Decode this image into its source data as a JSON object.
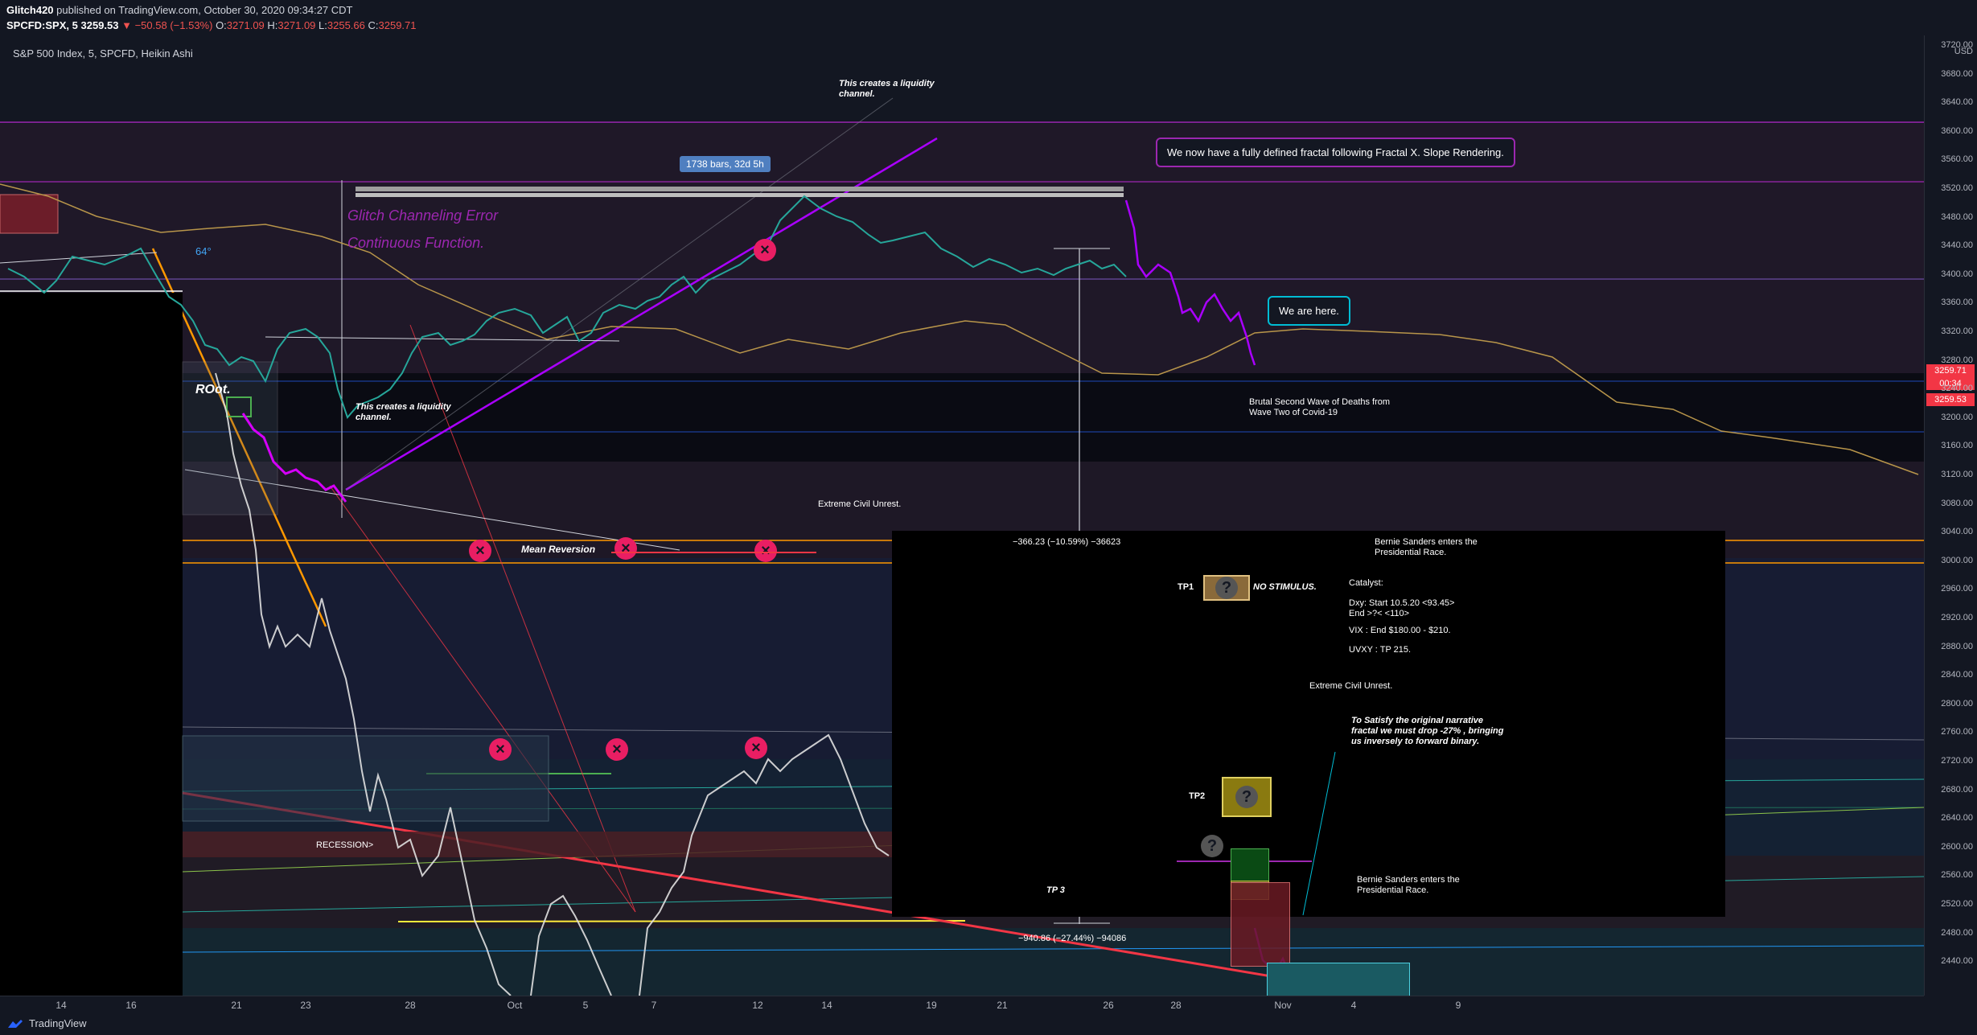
{
  "header": {
    "author": "Glitch420",
    "published": "published on TradingView.com, October 30, 2020 09:34:27 CDT",
    "symbol": "SPCFD:SPX, 5",
    "last": "3259.53",
    "change": "▼ −50.58 (−1.53%)",
    "o_label": "O:",
    "o": "3271.09",
    "h_label": "H:",
    "h": "3271.09",
    "l_label": "L:",
    "l": "3255.66",
    "c_label": "C:",
    "c": "3259.71"
  },
  "legend": "S&P 500 Index, 5, SPCFD, Heikin Ashi",
  "yaxis": {
    "unit": "USD",
    "ticks": [
      "3720.00",
      "3680.00",
      "3640.00",
      "3600.00",
      "3560.00",
      "3520.00",
      "3480.00",
      "3440.00",
      "3400.00",
      "3360.00",
      "3320.00",
      "3280.00",
      "3240.00",
      "3200.00",
      "3160.00",
      "3120.00",
      "3080.00",
      "3040.00",
      "3000.00",
      "2960.00",
      "2920.00",
      "2880.00",
      "2840.00",
      "2800.00",
      "2760.00",
      "2720.00",
      "2680.00",
      "2640.00",
      "2600.00",
      "2560.00",
      "2520.00",
      "2480.00",
      "2440.00"
    ],
    "tag1": "3259.71",
    "tag2": "00:34",
    "tag3": "3259.53"
  },
  "xaxis": {
    "ticks": [
      "14",
      "16",
      "21",
      "23",
      "28",
      "Oct",
      "5",
      "7",
      "12",
      "14",
      "19",
      "21",
      "26",
      "28",
      "Nov",
      "4",
      "9"
    ]
  },
  "annotations": {
    "liquidity_top": "This creates a liquidity channel.",
    "bars_label": "1738 bars, 32d 5h",
    "fractal_bubble": "We now have a fully defined fractal following Fractal X. Slope Rendering.",
    "glitch_error": "Glitch Channeling Error",
    "continuous": "Continuous Function.",
    "angle": "64°",
    "root": "ROot.",
    "liquidity_left": "This creates a liquidity channel.",
    "we_are_here": "We are here.",
    "brutal_wave": "Brutal Second Wave of Deaths from Wave Two of Covid-19",
    "extreme_civil_1": "Extreme Civil Unrest.",
    "measure_top": "−366.23 (−10.59%) −36623",
    "bernie_1": "Bernie Sanders enters the Presidential Race.",
    "tp1": "TP1",
    "no_stimulus": "NO STIMULUS.",
    "catalyst": "Catalyst:",
    "dxy": "Dxy: Start 10.5.20 <93.45>",
    "dxy_end": "End >?< <110>",
    "vix": "VIX : End $180.00 - $210.",
    "uvxy": "UVXY : TP 215.",
    "extreme_civil_2": "Extreme Civil Unrest.",
    "satisfy": "To Satisfy the original narrative fractal we must drop -27% , bringing us inversely to forward binary.",
    "tp2": "TP2",
    "mean_reversion": "Mean Reversion",
    "recession": "RECESSION>",
    "tp3": "TP 3",
    "bernie_2": "Bernie Sanders enters the Presidential Race.",
    "measure_bottom": "−940.86 (−27.44%) −94086",
    "question": "?"
  },
  "footer": {
    "brand": "TradingView"
  },
  "colors": {
    "background": "#131722",
    "up": "#26a69a",
    "down": "#ef5350",
    "purple": "#9c27b0",
    "magenta": "#e91e63",
    "orange": "#ff9800"
  }
}
